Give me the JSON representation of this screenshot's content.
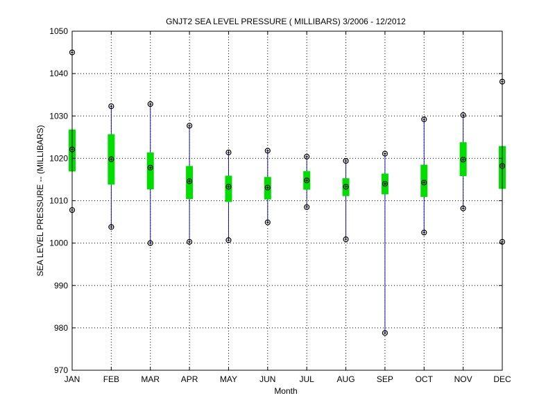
{
  "chart_data": {
    "type": "box",
    "title": "GNJT2  SEA LEVEL PRESSURE ( MILLIBARS) 3/2006 - 12/2012",
    "xlabel": "Month",
    "ylabel": "SEA LEVEL PRESSURE -- (MILLIBARS)",
    "ylim": [
      970,
      1050
    ],
    "yticks": [
      970,
      980,
      990,
      1000,
      1010,
      1020,
      1030,
      1040,
      1050
    ],
    "grid": true,
    "categories": [
      "JAN",
      "FEB",
      "MAR",
      "APR",
      "MAY",
      "JUN",
      "JUL",
      "AUG",
      "SEP",
      "OCT",
      "NOV",
      "DEC"
    ],
    "series": [
      {
        "max": [
          1045.0,
          1032.3,
          1032.8,
          1027.7,
          1021.4,
          1021.8,
          1020.4,
          1019.4,
          1021.1,
          1029.2,
          1030.2,
          1038.1
        ],
        "q3": [
          1026.8,
          1025.7,
          1021.4,
          1018.2,
          1015.9,
          1015.6,
          1017.0,
          1015.3,
          1016.4,
          1018.5,
          1023.8,
          1022.9
        ],
        "mean": [
          1022.1,
          1019.8,
          1017.8,
          1014.6,
          1013.3,
          1013.1,
          1014.8,
          1013.3,
          1014.0,
          1014.3,
          1019.7,
          1018.2
        ],
        "q1": [
          1016.9,
          1013.8,
          1012.7,
          1010.4,
          1009.7,
          1010.3,
          1012.6,
          1011.1,
          1011.5,
          1010.9,
          1015.8,
          1012.8
        ],
        "min": [
          1007.8,
          1003.8,
          1000.0,
          1000.3,
          1000.7,
          1004.9,
          1008.5,
          1000.9,
          978.8,
          1002.5,
          1008.2,
          1000.3
        ]
      }
    ],
    "colors": {
      "whisker": "#1010a0",
      "box": "#00dd00",
      "marker": "#000000",
      "grid": "#000000"
    }
  }
}
